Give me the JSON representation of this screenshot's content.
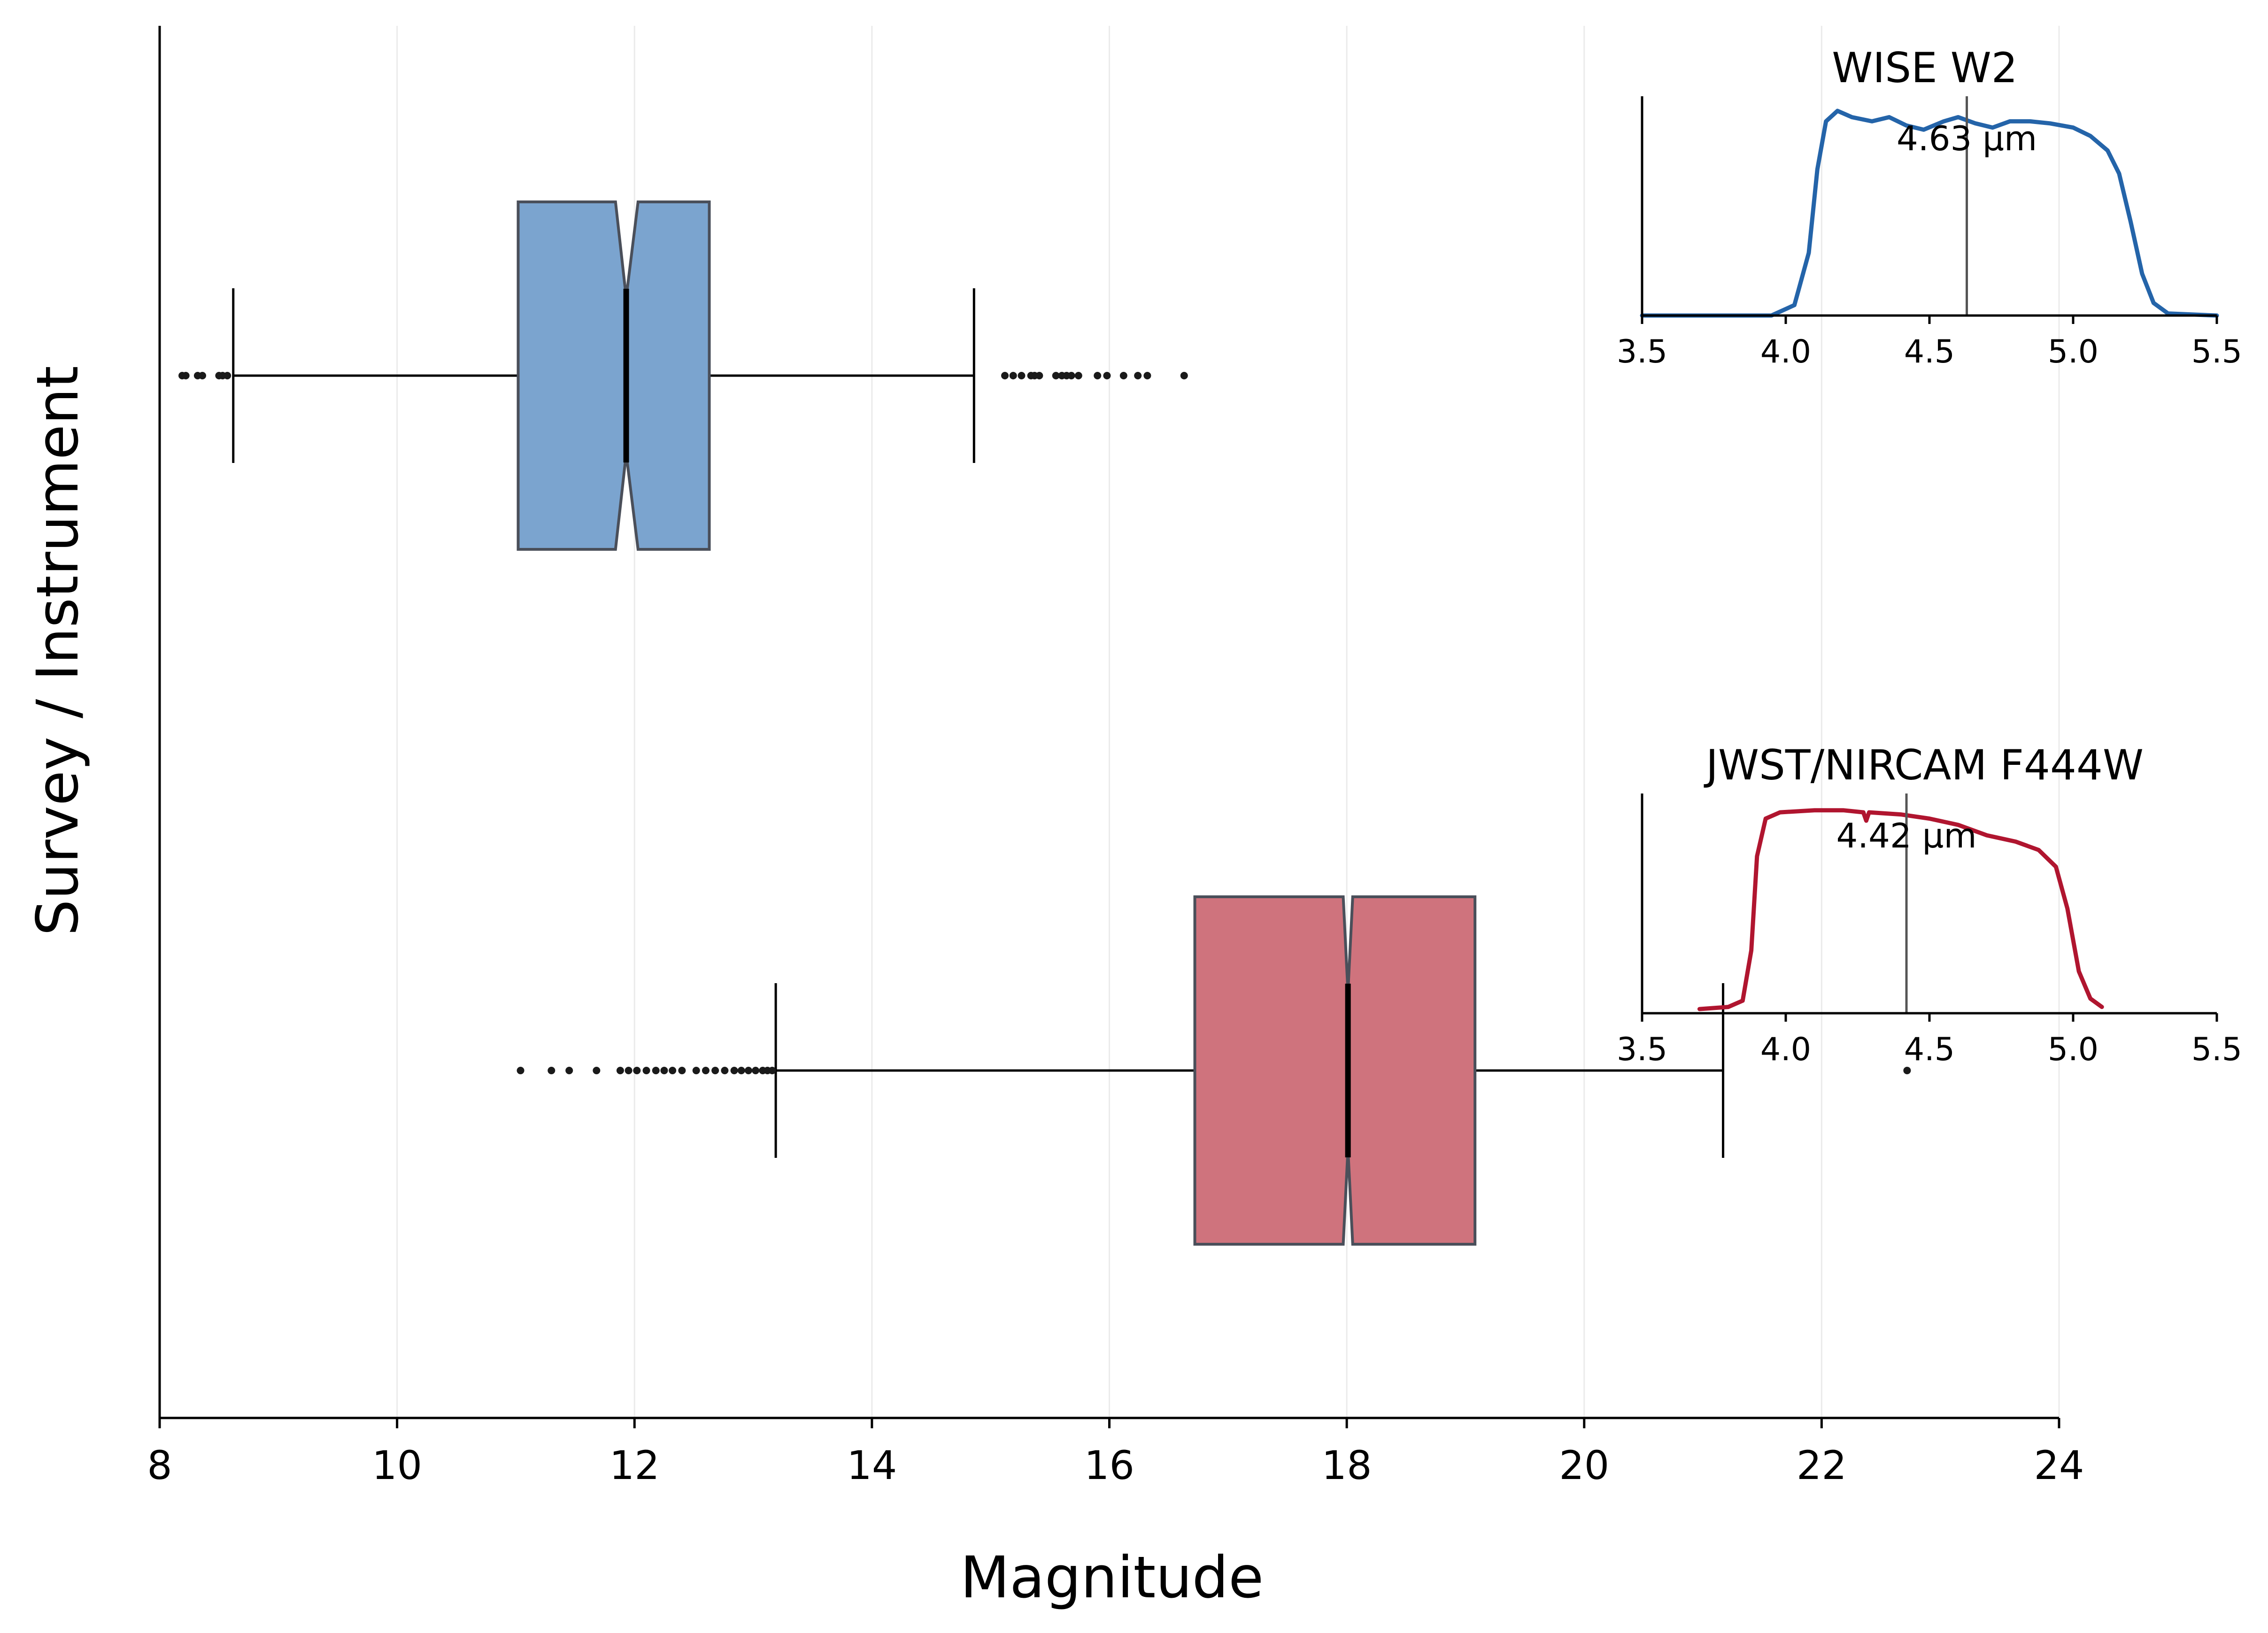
{
  "chart_data": {
    "type": "boxplot",
    "orientation": "horizontal",
    "notched": true,
    "xlabel": "Magnitude",
    "ylabel": "Survey / Instrument",
    "xlim": [
      8,
      24
    ],
    "x_ticks": [
      8,
      10,
      12,
      14,
      16,
      18,
      20,
      22,
      24
    ],
    "grid": "vertical",
    "series": [
      {
        "label": "WISE W2",
        "color": "#7BA4CF",
        "edge_color": "#4A4F5A",
        "q1": 11.02,
        "median": 11.93,
        "q3": 12.63,
        "notch_low": 11.84,
        "notch_high": 12.03,
        "whisker_low": 8.62,
        "whisker_high": 14.86,
        "outliers": [
          8.19,
          8.22,
          8.32,
          8.36,
          8.5,
          8.53,
          8.57,
          15.12,
          15.19,
          15.26,
          15.34,
          15.37,
          15.41,
          15.55,
          15.6,
          15.64,
          15.68,
          15.74,
          15.9,
          15.98,
          16.12,
          16.24,
          16.32,
          16.63
        ]
      },
      {
        "label": "JWST/NIRCAM F444W",
        "color": "#CF737D",
        "edge_color": "#4A4F5A",
        "q1": 16.72,
        "median": 18.01,
        "q3": 19.08,
        "notch_low": 17.97,
        "notch_high": 18.05,
        "whisker_low": 13.19,
        "whisker_high": 21.17,
        "outliers": [
          11.04,
          11.3,
          11.45,
          11.68,
          11.88,
          11.95,
          12.02,
          12.1,
          12.18,
          12.25,
          12.32,
          12.4,
          12.52,
          12.6,
          12.68,
          12.76,
          12.84,
          12.9,
          12.96,
          13.02,
          13.08,
          13.12,
          13.16,
          22.72
        ]
      }
    ],
    "insets": [
      {
        "title": "WISE W2",
        "annotation": "4.63 µm",
        "line_color": "#2464A9",
        "marker_color": "#555555",
        "marker_x": 4.63,
        "xlim": [
          3.5,
          5.5
        ],
        "ylim": [
          0,
          1.05
        ],
        "x_ticks": [
          "3.5",
          "4.0",
          "4.5",
          "5.0",
          "5.5"
        ],
        "x_tick_values": [
          3.5,
          4.0,
          4.5,
          5.0,
          5.5
        ],
        "curve": [
          [
            3.5,
            0.0
          ],
          [
            3.95,
            0.0
          ],
          [
            4.03,
            0.05
          ],
          [
            4.08,
            0.3
          ],
          [
            4.11,
            0.7
          ],
          [
            4.14,
            0.93
          ],
          [
            4.18,
            0.98
          ],
          [
            4.23,
            0.95
          ],
          [
            4.3,
            0.93
          ],
          [
            4.36,
            0.95
          ],
          [
            4.42,
            0.91
          ],
          [
            4.48,
            0.89
          ],
          [
            4.55,
            0.93
          ],
          [
            4.6,
            0.95
          ],
          [
            4.66,
            0.92
          ],
          [
            4.72,
            0.9
          ],
          [
            4.78,
            0.93
          ],
          [
            4.85,
            0.93
          ],
          [
            4.92,
            0.92
          ],
          [
            5.0,
            0.9
          ],
          [
            5.06,
            0.86
          ],
          [
            5.12,
            0.79
          ],
          [
            5.16,
            0.68
          ],
          [
            5.2,
            0.45
          ],
          [
            5.24,
            0.2
          ],
          [
            5.28,
            0.06
          ],
          [
            5.33,
            0.01
          ],
          [
            5.5,
            0.0
          ]
        ]
      },
      {
        "title": "JWST/NIRCAM F444W",
        "annotation": "4.42 µm",
        "line_color": "#B0152F",
        "marker_color": "#555555",
        "marker_x": 4.42,
        "xlim": [
          3.5,
          5.5
        ],
        "ylim": [
          0,
          1.05
        ],
        "x_ticks": [
          "3.5",
          "4.0",
          "4.5",
          "5.0",
          "5.5"
        ],
        "x_tick_values": [
          3.5,
          4.0,
          4.5,
          5.0,
          5.5
        ],
        "curve": [
          [
            3.7,
            0.02
          ],
          [
            3.8,
            0.03
          ],
          [
            3.85,
            0.06
          ],
          [
            3.88,
            0.3
          ],
          [
            3.9,
            0.75
          ],
          [
            3.93,
            0.93
          ],
          [
            3.98,
            0.96
          ],
          [
            4.1,
            0.97
          ],
          [
            4.2,
            0.97
          ],
          [
            4.27,
            0.96
          ],
          [
            4.28,
            0.92
          ],
          [
            4.29,
            0.96
          ],
          [
            4.4,
            0.95
          ],
          [
            4.5,
            0.93
          ],
          [
            4.6,
            0.9
          ],
          [
            4.7,
            0.85
          ],
          [
            4.8,
            0.82
          ],
          [
            4.88,
            0.78
          ],
          [
            4.94,
            0.7
          ],
          [
            4.98,
            0.5
          ],
          [
            5.02,
            0.2
          ],
          [
            5.06,
            0.07
          ],
          [
            5.1,
            0.03
          ]
        ]
      }
    ]
  }
}
